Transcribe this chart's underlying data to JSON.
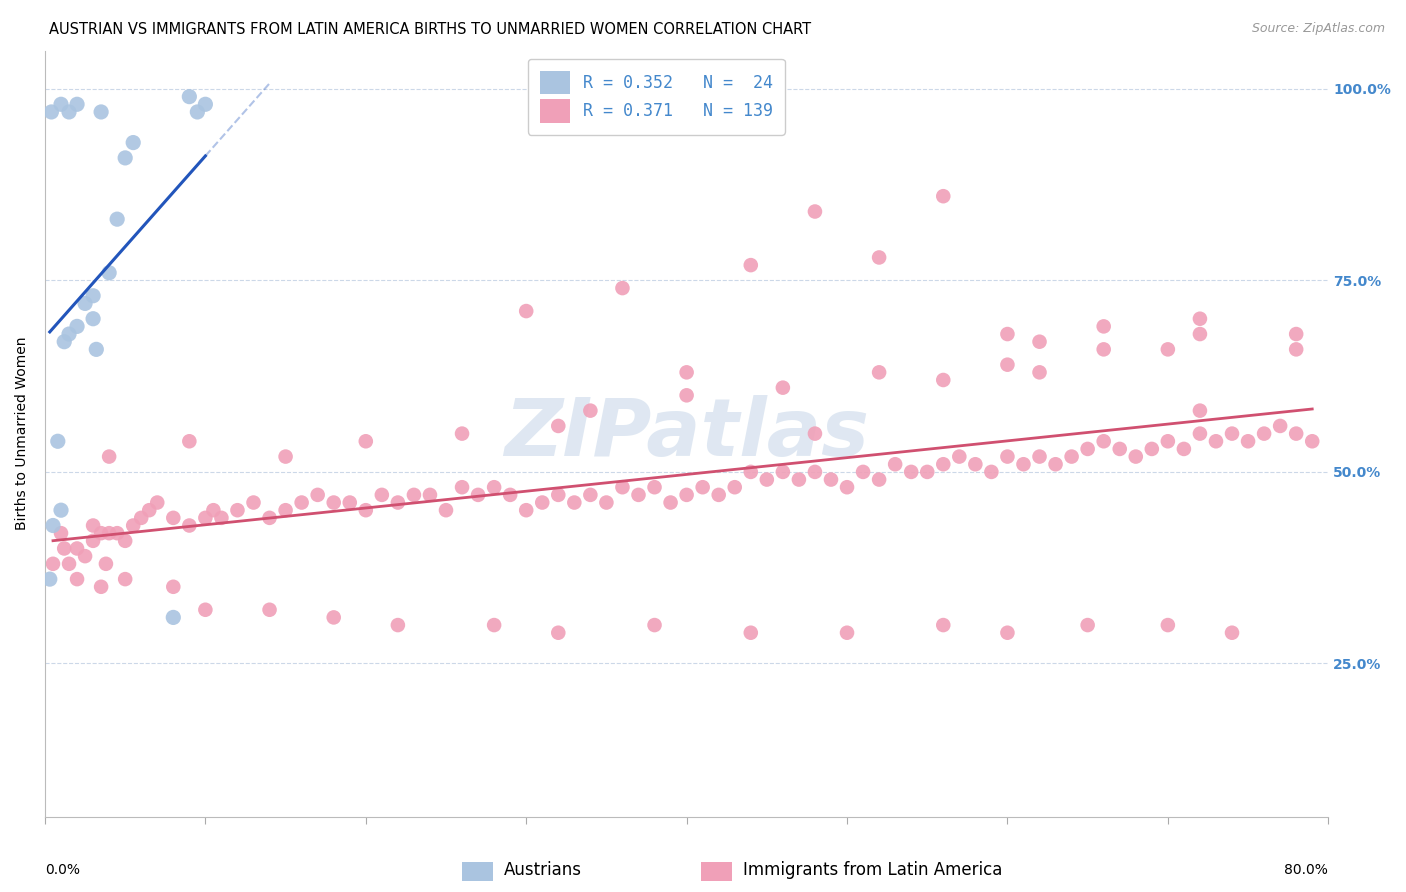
{
  "title": "AUSTRIAN VS IMMIGRANTS FROM LATIN AMERICA BIRTHS TO UNMARRIED WOMEN CORRELATION CHART",
  "source": "Source: ZipAtlas.com",
  "ylabel": "Births to Unmarried Women",
  "xmin": 0,
  "xmax": 80,
  "ymin": 5,
  "ymax": 105,
  "blue_color": "#aac4e0",
  "pink_color": "#f0a0b8",
  "blue_line_color": "#2255bb",
  "pink_line_color": "#d05070",
  "R_blue": 0.352,
  "N_blue": 24,
  "R_pink": 0.371,
  "N_pink": 139,
  "legend_label_blue": "Austrians",
  "legend_label_pink": "Immigrants from Latin America",
  "ytick_vals": [
    25,
    50,
    75,
    100
  ],
  "ytick_labels": [
    "25.0%",
    "50.0%",
    "75.0%",
    "100.0%"
  ],
  "watermark": "ZIPatlas",
  "title_fontsize": 10.5,
  "axis_label_fontsize": 10,
  "tick_fontsize": 10,
  "legend_fontsize": 12,
  "source_fontsize": 9,
  "background_color": "#ffffff",
  "grid_color": "#ccd8e8",
  "right_axis_color": "#4488cc",
  "blue_x": [
    0.3,
    0.5,
    0.8,
    1.0,
    1.2,
    1.5,
    2.0,
    2.5,
    3.0,
    3.0,
    3.2,
    3.5,
    4.0,
    4.5,
    5.0,
    5.5,
    0.4,
    1.0,
    1.5,
    2.0,
    8.0,
    9.0,
    9.5,
    10.0
  ],
  "blue_y": [
    36,
    43,
    54,
    45,
    67,
    68,
    69,
    72,
    70,
    73,
    66,
    97,
    76,
    83,
    91,
    93,
    97,
    98,
    97,
    98,
    31,
    99,
    97,
    98
  ],
  "pink_x": [
    0.5,
    1.0,
    1.2,
    1.5,
    2.0,
    2.5,
    3.0,
    3.0,
    3.5,
    3.8,
    4.0,
    4.5,
    5.0,
    5.5,
    6.0,
    6.5,
    7.0,
    8.0,
    9.0,
    10.0,
    10.5,
    11.0,
    12.0,
    13.0,
    14.0,
    15.0,
    16.0,
    17.0,
    18.0,
    19.0,
    20.0,
    21.0,
    22.0,
    23.0,
    24.0,
    25.0,
    26.0,
    27.0,
    28.0,
    29.0,
    30.0,
    31.0,
    32.0,
    33.0,
    34.0,
    35.0,
    36.0,
    37.0,
    38.0,
    39.0,
    40.0,
    41.0,
    42.0,
    43.0,
    44.0,
    45.0,
    46.0,
    47.0,
    48.0,
    49.0,
    50.0,
    51.0,
    52.0,
    53.0,
    54.0,
    55.0,
    56.0,
    57.0,
    58.0,
    59.0,
    60.0,
    61.0,
    62.0,
    63.0,
    64.0,
    65.0,
    66.0,
    67.0,
    68.0,
    69.0,
    70.0,
    71.0,
    72.0,
    73.0,
    74.0,
    75.0,
    76.0,
    77.0,
    78.0,
    79.0,
    2.0,
    3.5,
    5.0,
    8.0,
    10.0,
    14.0,
    18.0,
    22.0,
    28.0,
    32.0,
    38.0,
    44.0,
    50.0,
    56.0,
    60.0,
    65.0,
    70.0,
    74.0,
    4.0,
    9.0,
    15.0,
    20.0,
    26.0,
    34.0,
    40.0,
    46.0,
    52.0,
    60.0,
    66.0,
    72.0,
    78.0,
    30.0,
    36.0,
    44.0,
    52.0,
    60.0,
    66.0,
    72.0,
    78.0,
    32.0,
    40.0,
    48.0,
    56.0,
    62.0,
    72.0,
    48.0,
    56.0,
    62.0,
    70.0
  ],
  "pink_y": [
    38,
    42,
    40,
    38,
    40,
    39,
    41,
    43,
    42,
    38,
    42,
    42,
    41,
    43,
    44,
    45,
    46,
    44,
    43,
    44,
    45,
    44,
    45,
    46,
    44,
    45,
    46,
    47,
    46,
    46,
    45,
    47,
    46,
    47,
    47,
    45,
    48,
    47,
    48,
    47,
    45,
    46,
    47,
    46,
    47,
    46,
    48,
    47,
    48,
    46,
    47,
    48,
    47,
    48,
    50,
    49,
    50,
    49,
    50,
    49,
    48,
    50,
    49,
    51,
    50,
    50,
    51,
    52,
    51,
    50,
    52,
    51,
    52,
    51,
    52,
    53,
    54,
    53,
    52,
    53,
    54,
    53,
    55,
    54,
    55,
    54,
    55,
    56,
    55,
    54,
    36,
    35,
    36,
    35,
    32,
    32,
    31,
    30,
    30,
    29,
    30,
    29,
    29,
    30,
    29,
    30,
    30,
    29,
    52,
    54,
    52,
    54,
    55,
    58,
    60,
    61,
    63,
    64,
    66,
    68,
    66,
    71,
    74,
    77,
    78,
    68,
    69,
    70,
    68,
    56,
    63,
    55,
    62,
    63,
    58,
    84,
    86,
    67,
    66
  ]
}
